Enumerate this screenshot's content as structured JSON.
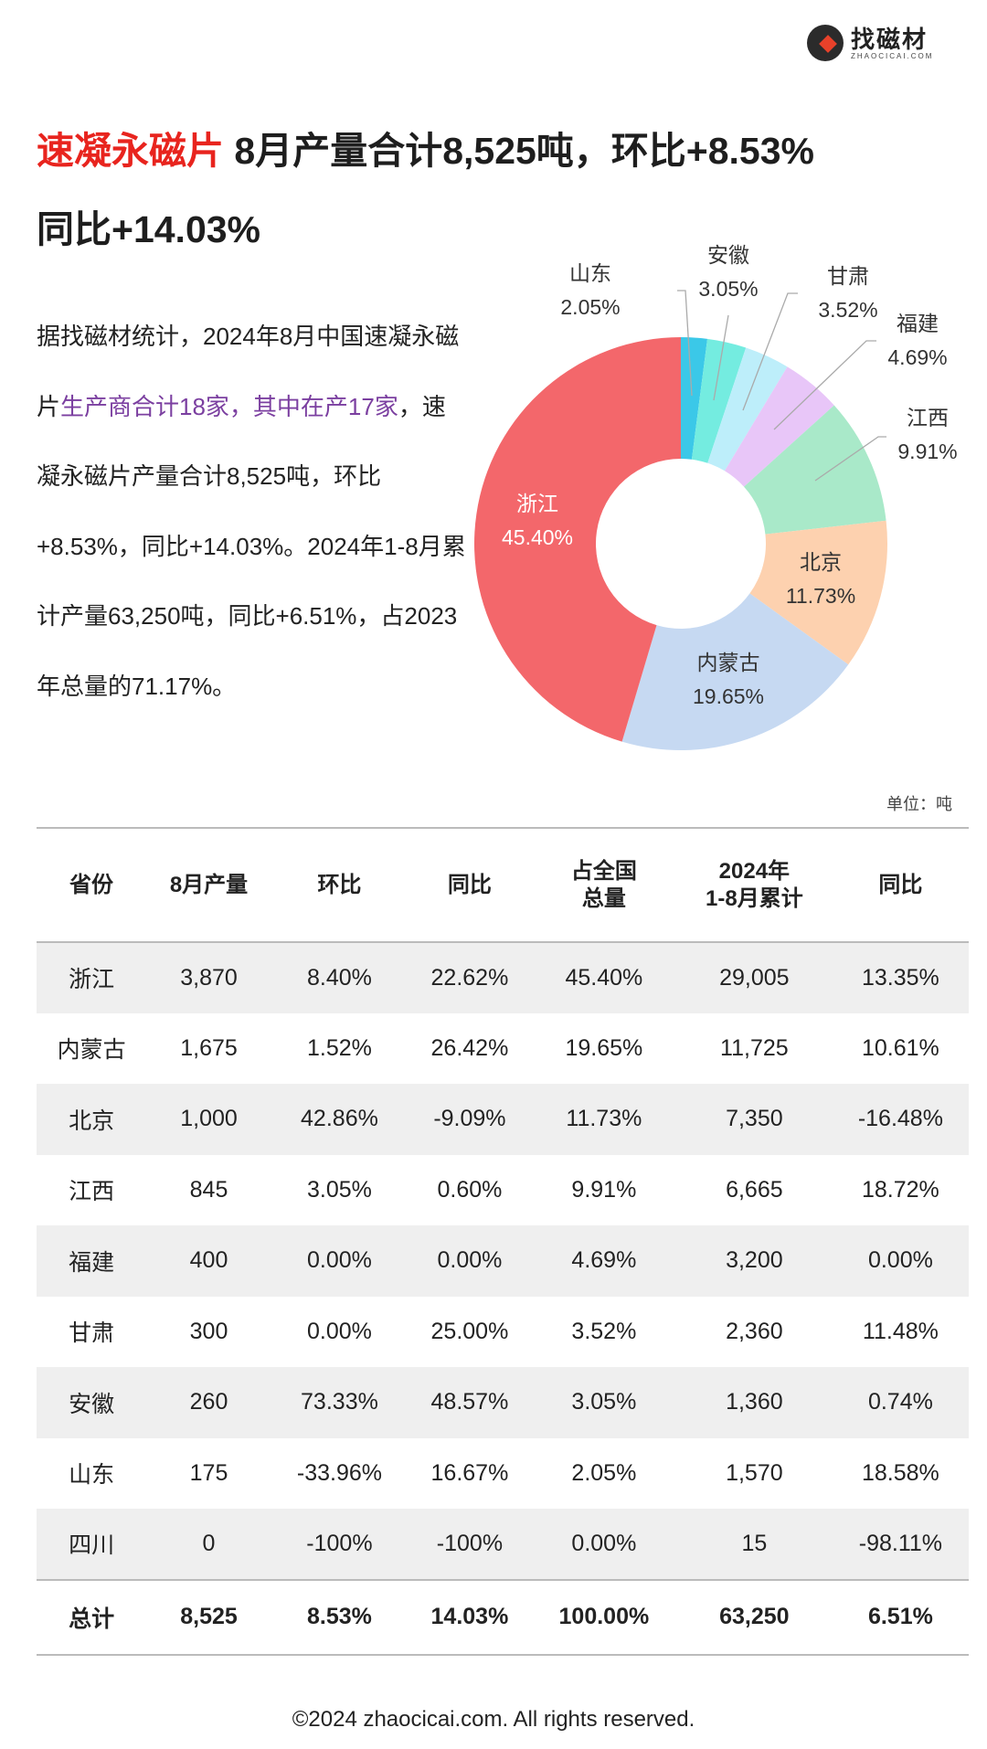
{
  "logo": {
    "cn": "找磁材",
    "en": "ZHAOCICAI.COM"
  },
  "title": {
    "highlight": "速凝永磁片",
    "rest": " 8月产量合计8,525吨，环比+8.53%",
    "line2": "同比+14.03%"
  },
  "paragraph": {
    "p1": "据找磁材统计，2024年8月中国速凝永磁片",
    "p2": "生产商合计18家，其中在产17家",
    "p3": "，速凝永磁片产量合计8,525吨，环比+8.53%，同比+14.03%。2024年1-8月累计产量63,250吨，同比+6.51%，占2023年总量的71.17%。"
  },
  "chart_data": {
    "type": "pie",
    "donut": true,
    "categories": [
      "山东",
      "安徽",
      "甘肃",
      "福建",
      "江西",
      "北京",
      "内蒙古",
      "浙江"
    ],
    "values": [
      2.05,
      3.05,
      3.52,
      4.69,
      9.91,
      11.73,
      19.65,
      45.4
    ],
    "labels": [
      "2.05%",
      "3.05%",
      "3.52%",
      "4.69%",
      "9.91%",
      "11.73%",
      "19.65%",
      "45.40%"
    ],
    "colors": [
      "#3bc8e8",
      "#74ece0",
      "#bdeefa",
      "#e8c6f8",
      "#a9e9c9",
      "#fdd1af",
      "#c6d9f2",
      "#f3676b"
    ]
  },
  "unit": "单位：吨",
  "table": {
    "headers": [
      "省份",
      "8月产量",
      "环比",
      "同比",
      "占全国\n总量",
      "2024年\n1-8月累计",
      "同比"
    ],
    "rows": [
      [
        "浙江",
        "3,870",
        "8.40%",
        "22.62%",
        "45.40%",
        "29,005",
        "13.35%"
      ],
      [
        "内蒙古",
        "1,675",
        "1.52%",
        "26.42%",
        "19.65%",
        "11,725",
        "10.61%"
      ],
      [
        "北京",
        "1,000",
        "42.86%",
        "-9.09%",
        "11.73%",
        "7,350",
        "-16.48%"
      ],
      [
        "江西",
        "845",
        "3.05%",
        "0.60%",
        "9.91%",
        "6,665",
        "18.72%"
      ],
      [
        "福建",
        "400",
        "0.00%",
        "0.00%",
        "4.69%",
        "3,200",
        "0.00%"
      ],
      [
        "甘肃",
        "300",
        "0.00%",
        "25.00%",
        "3.52%",
        "2,360",
        "11.48%"
      ],
      [
        "安徽",
        "260",
        "73.33%",
        "48.57%",
        "3.05%",
        "1,360",
        "0.74%"
      ],
      [
        "山东",
        "175",
        "-33.96%",
        "16.67%",
        "2.05%",
        "1,570",
        "18.58%"
      ],
      [
        "四川",
        "0",
        "-100%",
        "-100%",
        "0.00%",
        "15",
        "-98.11%"
      ]
    ],
    "total": [
      "总计",
      "8,525",
      "8.53%",
      "14.03%",
      "100.00%",
      "63,250",
      "6.51%"
    ]
  },
  "footer": "©2024 zhaocicai.com. All rights reserved."
}
